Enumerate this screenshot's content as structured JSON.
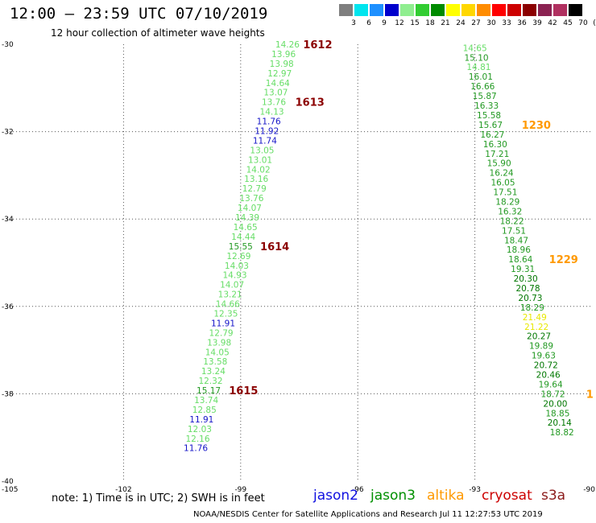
{
  "header": {
    "title": "12:00 – 23:59 UTC 07/10/2019",
    "subtitle": "12 hour collection of altimeter wave heights"
  },
  "colorbar": {
    "labels": [
      "3",
      "6",
      "9",
      "12",
      "15",
      "18",
      "21",
      "24",
      "27",
      "30",
      "33",
      "36",
      "39",
      "42",
      "45",
      "70",
      "(ft)"
    ],
    "colors": [
      "#7f7f7f",
      "#00e5ee",
      "#1e90ff",
      "#0000cd",
      "#90ee90",
      "#32cd32",
      "#008b00",
      "#ffff00",
      "#ffd700",
      "#ff8c00",
      "#ff0000",
      "#cd0000",
      "#8b0000",
      "#8b2252",
      "#b03060",
      "#000000"
    ]
  },
  "footer": {
    "note": "note:  1) Time is in UTC;  2) SWH is in feet",
    "credit": "NOAA/NESDIS Center for Satellite Applications and Research     Jul 11 12:27:53 UTC 2019"
  },
  "legend": [
    {
      "label": "jason2",
      "color": "#1010e0"
    },
    {
      "label": "jason3",
      "color": "#009000"
    },
    {
      "label": "altika",
      "color": "#ff9900"
    },
    {
      "label": "cryosat",
      "color": "#cc0000"
    },
    {
      "label": "s3a",
      "color": "#8b1a1a"
    }
  ],
  "chart_data": {
    "type": "scatter",
    "xlim": [
      -105,
      -90
    ],
    "ylim": [
      -40,
      -30
    ],
    "x_ticks": [
      "-105",
      "-102",
      "-99",
      "-96",
      "-93",
      "-90"
    ],
    "y_ticks": [
      "-30",
      "-32",
      "-34",
      "-36",
      "-38",
      "-40"
    ],
    "gridlines": "dotted",
    "tracks": [
      {
        "points": [
          {
            "lon": -97.8,
            "lat": -30.0,
            "v": "14.26",
            "c": "#66dd66"
          },
          {
            "lon": -97.9,
            "lat": -30.22,
            "v": "13.96",
            "c": "#66dd66"
          },
          {
            "lon": -97.95,
            "lat": -30.44,
            "v": "13.98",
            "c": "#66dd66"
          },
          {
            "lon": -98.0,
            "lat": -30.66,
            "v": "12.97",
            "c": "#66dd66"
          },
          {
            "lon": -98.05,
            "lat": -30.88,
            "v": "14.64",
            "c": "#66dd66"
          },
          {
            "lon": -98.1,
            "lat": -31.1,
            "v": "13.07",
            "c": "#66dd66"
          },
          {
            "lon": -98.15,
            "lat": -31.32,
            "v": "13.76",
            "c": "#66dd66"
          },
          {
            "lon": -98.2,
            "lat": -31.54,
            "v": "14.13",
            "c": "#66dd66"
          },
          {
            "lon": -98.28,
            "lat": -31.76,
            "v": "11.76",
            "c": "#1515c8"
          },
          {
            "lon": -98.33,
            "lat": -31.98,
            "v": "11.92",
            "c": "#1515c8"
          },
          {
            "lon": -98.38,
            "lat": -32.2,
            "v": "11.74",
            "c": "#1515c8"
          },
          {
            "lon": -98.45,
            "lat": -32.42,
            "v": "13.05",
            "c": "#66dd66"
          },
          {
            "lon": -98.5,
            "lat": -32.64,
            "v": "13.01",
            "c": "#66dd66"
          },
          {
            "lon": -98.55,
            "lat": -32.86,
            "v": "14.02",
            "c": "#66dd66"
          },
          {
            "lon": -98.6,
            "lat": -33.08,
            "v": "13.16",
            "c": "#66dd66"
          },
          {
            "lon": -98.65,
            "lat": -33.3,
            "v": "12.79",
            "c": "#66dd66"
          },
          {
            "lon": -98.72,
            "lat": -33.52,
            "v": "13.76",
            "c": "#66dd66"
          },
          {
            "lon": -98.77,
            "lat": -33.74,
            "v": "14.07",
            "c": "#66dd66"
          },
          {
            "lon": -98.83,
            "lat": -33.96,
            "v": "14.39",
            "c": "#66dd66"
          },
          {
            "lon": -98.88,
            "lat": -34.18,
            "v": "14.65",
            "c": "#66dd66"
          },
          {
            "lon": -98.93,
            "lat": -34.4,
            "v": "14.44",
            "c": "#66dd66"
          },
          {
            "lon": -99.0,
            "lat": -34.62,
            "v": "15.55",
            "c": "#229922"
          },
          {
            "lon": -99.05,
            "lat": -34.84,
            "v": "12.69",
            "c": "#66dd66"
          },
          {
            "lon": -99.1,
            "lat": -35.06,
            "v": "14.03",
            "c": "#66dd66"
          },
          {
            "lon": -99.15,
            "lat": -35.28,
            "v": "14.93",
            "c": "#66dd66"
          },
          {
            "lon": -99.22,
            "lat": -35.5,
            "v": "14.07",
            "c": "#66dd66"
          },
          {
            "lon": -99.27,
            "lat": -35.72,
            "v": "13.21",
            "c": "#66dd66"
          },
          {
            "lon": -99.33,
            "lat": -35.94,
            "v": "14.66",
            "c": "#66dd66"
          },
          {
            "lon": -99.38,
            "lat": -36.16,
            "v": "12.35",
            "c": "#66dd66"
          },
          {
            "lon": -99.45,
            "lat": -36.38,
            "v": "11.91",
            "c": "#1515c8"
          },
          {
            "lon": -99.5,
            "lat": -36.6,
            "v": "12.79",
            "c": "#66dd66"
          },
          {
            "lon": -99.55,
            "lat": -36.82,
            "v": "13.98",
            "c": "#66dd66"
          },
          {
            "lon": -99.6,
            "lat": -37.04,
            "v": "14.05",
            "c": "#66dd66"
          },
          {
            "lon": -99.65,
            "lat": -37.26,
            "v": "13.58",
            "c": "#66dd66"
          },
          {
            "lon": -99.7,
            "lat": -37.48,
            "v": "13.24",
            "c": "#66dd66"
          },
          {
            "lon": -99.77,
            "lat": -37.7,
            "v": "12.32",
            "c": "#66dd66"
          },
          {
            "lon": -99.82,
            "lat": -37.92,
            "v": "15.17",
            "c": "#229922"
          },
          {
            "lon": -99.88,
            "lat": -38.14,
            "v": "13.74",
            "c": "#66dd66"
          },
          {
            "lon": -99.93,
            "lat": -38.36,
            "v": "12.85",
            "c": "#66dd66"
          },
          {
            "lon": -100.0,
            "lat": -38.58,
            "v": "11.91",
            "c": "#1515c8"
          },
          {
            "lon": -100.05,
            "lat": -38.8,
            "v": "12.03",
            "c": "#66dd66"
          },
          {
            "lon": -100.1,
            "lat": -39.02,
            "v": "12.16",
            "c": "#66dd66"
          },
          {
            "lon": -100.15,
            "lat": -39.24,
            "v": "11.76",
            "c": "#1515c8"
          }
        ],
        "time_labels": [
          {
            "lon": -97.4,
            "lat": -30.0,
            "t": "1612",
            "c": "#8b0000"
          },
          {
            "lon": -97.6,
            "lat": -31.32,
            "t": "1613",
            "c": "#8b0000"
          },
          {
            "lon": -98.5,
            "lat": -34.62,
            "t": "1614",
            "c": "#8b0000"
          },
          {
            "lon": -99.3,
            "lat": -37.92,
            "t": "1615",
            "c": "#8b0000"
          }
        ]
      },
      {
        "points": [
          {
            "lon": -93.0,
            "lat": -30.08,
            "v": "14.65",
            "c": "#66dd66"
          },
          {
            "lon": -92.96,
            "lat": -30.3,
            "v": "15.10",
            "c": "#229922"
          },
          {
            "lon": -92.9,
            "lat": -30.52,
            "v": "14.81",
            "c": "#66dd66"
          },
          {
            "lon": -92.85,
            "lat": -30.74,
            "v": "16.01",
            "c": "#229922"
          },
          {
            "lon": -92.8,
            "lat": -30.96,
            "v": "16.66",
            "c": "#229922"
          },
          {
            "lon": -92.75,
            "lat": -31.18,
            "v": "15.87",
            "c": "#229922"
          },
          {
            "lon": -92.7,
            "lat": -31.4,
            "v": "16.33",
            "c": "#229922"
          },
          {
            "lon": -92.64,
            "lat": -31.62,
            "v": "15.58",
            "c": "#229922"
          },
          {
            "lon": -92.6,
            "lat": -31.84,
            "v": "15.67",
            "c": "#229922"
          },
          {
            "lon": -92.55,
            "lat": -32.06,
            "v": "16.27",
            "c": "#229922"
          },
          {
            "lon": -92.48,
            "lat": -32.28,
            "v": "16.30",
            "c": "#229922"
          },
          {
            "lon": -92.43,
            "lat": -32.5,
            "v": "17.21",
            "c": "#229922"
          },
          {
            "lon": -92.38,
            "lat": -32.72,
            "v": "15.90",
            "c": "#229922"
          },
          {
            "lon": -92.32,
            "lat": -32.94,
            "v": "16.24",
            "c": "#229922"
          },
          {
            "lon": -92.28,
            "lat": -33.16,
            "v": "16.05",
            "c": "#229922"
          },
          {
            "lon": -92.22,
            "lat": -33.38,
            "v": "17.51",
            "c": "#229922"
          },
          {
            "lon": -92.16,
            "lat": -33.6,
            "v": "18.29",
            "c": "#229922"
          },
          {
            "lon": -92.1,
            "lat": -33.82,
            "v": "16.32",
            "c": "#229922"
          },
          {
            "lon": -92.05,
            "lat": -34.04,
            "v": "18.22",
            "c": "#229922"
          },
          {
            "lon": -92.0,
            "lat": -34.26,
            "v": "17.51",
            "c": "#229922"
          },
          {
            "lon": -91.94,
            "lat": -34.48,
            "v": "18.47",
            "c": "#229922"
          },
          {
            "lon": -91.88,
            "lat": -34.7,
            "v": "18.96",
            "c": "#229922"
          },
          {
            "lon": -91.83,
            "lat": -34.92,
            "v": "18.64",
            "c": "#229922"
          },
          {
            "lon": -91.77,
            "lat": -35.14,
            "v": "19.31",
            "c": "#229922"
          },
          {
            "lon": -91.7,
            "lat": -35.36,
            "v": "20.30",
            "c": "#007700"
          },
          {
            "lon": -91.64,
            "lat": -35.58,
            "v": "20.78",
            "c": "#007700"
          },
          {
            "lon": -91.58,
            "lat": -35.8,
            "v": "20.73",
            "c": "#007700"
          },
          {
            "lon": -91.53,
            "lat": -36.02,
            "v": "18.29",
            "c": "#229922"
          },
          {
            "lon": -91.47,
            "lat": -36.24,
            "v": "21.49",
            "c": "#e8e800"
          },
          {
            "lon": -91.42,
            "lat": -36.46,
            "v": "21.22",
            "c": "#e8e800"
          },
          {
            "lon": -91.36,
            "lat": -36.68,
            "v": "20.27",
            "c": "#007700"
          },
          {
            "lon": -91.3,
            "lat": -36.9,
            "v": "19.89",
            "c": "#229922"
          },
          {
            "lon": -91.24,
            "lat": -37.12,
            "v": "19.63",
            "c": "#229922"
          },
          {
            "lon": -91.18,
            "lat": -37.34,
            "v": "20.72",
            "c": "#007700"
          },
          {
            "lon": -91.12,
            "lat": -37.56,
            "v": "20.46",
            "c": "#007700"
          },
          {
            "lon": -91.06,
            "lat": -37.78,
            "v": "19.64",
            "c": "#229922"
          },
          {
            "lon": -91.0,
            "lat": -38.0,
            "v": "18.72",
            "c": "#229922"
          },
          {
            "lon": -90.94,
            "lat": -38.22,
            "v": "20.00",
            "c": "#007700"
          },
          {
            "lon": -90.88,
            "lat": -38.44,
            "v": "18.85",
            "c": "#229922"
          },
          {
            "lon": -90.83,
            "lat": -38.66,
            "v": "20.14",
            "c": "#007700"
          },
          {
            "lon": -90.77,
            "lat": -38.88,
            "v": "18.82",
            "c": "#229922"
          }
        ],
        "time_labels": [
          {
            "lon": -91.8,
            "lat": -31.84,
            "t": "1230",
            "c": "#ff9900"
          },
          {
            "lon": -91.1,
            "lat": -34.92,
            "t": "1229",
            "c": "#ff9900"
          },
          {
            "lon": -90.15,
            "lat": -38.0,
            "t": "1",
            "c": "#ff9900"
          }
        ]
      }
    ]
  }
}
